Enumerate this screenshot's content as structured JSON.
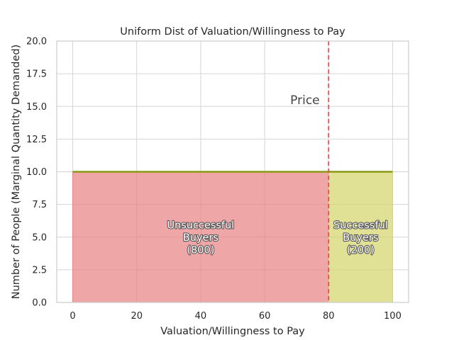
{
  "chart_data": {
    "type": "area",
    "title": "Uniform Dist of Valuation/Willingness to Pay",
    "xlabel": "Valuation/Willingness to Pay",
    "ylabel": "Number of People (Marginal Quantity Demanded)",
    "xlim": [
      -5,
      105
    ],
    "ylim": [
      0,
      20
    ],
    "xticks": [
      0,
      20,
      40,
      60,
      80,
      100
    ],
    "xtick_labels": [
      "0",
      "20",
      "40",
      "60",
      "80",
      "100"
    ],
    "yticks": [
      0,
      2.5,
      5,
      7.5,
      10,
      12.5,
      15,
      17.5,
      20
    ],
    "ytick_labels": [
      "0.0",
      "2.5",
      "5.0",
      "7.5",
      "10.0",
      "12.5",
      "15.0",
      "17.5",
      "20.0"
    ],
    "grid": true,
    "demand_line": {
      "x": [
        0,
        100
      ],
      "y": [
        10,
        10
      ],
      "color": "#8b9a14"
    },
    "price": {
      "value": 80,
      "label": "Price",
      "label_x": 68,
      "label_y": 15.5,
      "color": "#d9534f"
    },
    "regions": [
      {
        "x_range": [
          0,
          80
        ],
        "height": 10,
        "color": "#e88080",
        "lines": [
          "Unsuccessful",
          "Buyers",
          "(800)"
        ],
        "label_x": 40,
        "label_y": 5
      },
      {
        "x_range": [
          80,
          100
        ],
        "height": 10,
        "color": "#d4d46a",
        "lines": [
          "Successful",
          "Buyers",
          "(200)"
        ],
        "label_x": 90,
        "label_y": 5
      }
    ]
  }
}
